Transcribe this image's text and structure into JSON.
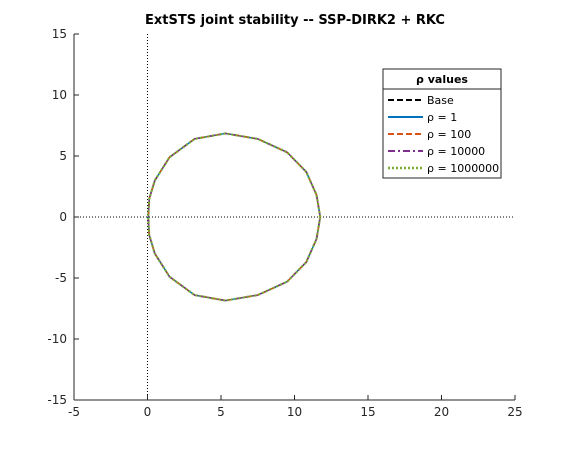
{
  "chart_data": {
    "type": "line",
    "title": "ExtSTS joint stability -- SSP-DIRK2 + RKC",
    "xlabel": "",
    "ylabel": "",
    "xlim": [
      -5,
      25
    ],
    "ylim": [
      -15,
      15
    ],
    "xticks": [
      -5,
      0,
      5,
      10,
      15,
      20,
      25
    ],
    "yticks": [
      -15,
      -10,
      -5,
      0,
      5,
      10,
      15
    ],
    "reference_lines": {
      "x": 0,
      "y": 0,
      "style": "dotted"
    },
    "grid": false,
    "legend": {
      "title": "ρ values",
      "placement": "top-right",
      "entries": [
        {
          "label": "Base",
          "color": "#000000",
          "style": "dashed"
        },
        {
          "label": "ρ = 1",
          "color": "#0072BD",
          "style": "solid"
        },
        {
          "label": "ρ = 100",
          "color": "#D95319",
          "style": "dashed"
        },
        {
          "label": "ρ = 10000",
          "color": "#7E2F8E",
          "style": "dashdot"
        },
        {
          "label": "ρ = 1000000",
          "color": "#77AC30",
          "style": "dotted"
        }
      ]
    },
    "series": [
      {
        "name": "Base",
        "color": "#000000",
        "style": "dashed",
        "x": [
          11.75,
          11.5,
          10.8,
          9.5,
          7.5,
          5.3,
          3.2,
          1.5,
          0.5,
          0.12,
          0.05,
          0.12,
          0.5,
          1.5,
          3.2,
          5.3,
          7.5,
          9.5,
          10.8,
          11.5,
          11.75
        ],
        "y": [
          0,
          1.8,
          3.7,
          5.3,
          6.4,
          6.85,
          6.4,
          4.9,
          3.0,
          1.5,
          0,
          -1.5,
          -3.0,
          -4.9,
          -6.4,
          -6.85,
          -6.4,
          -5.3,
          -3.7,
          -1.8,
          0
        ]
      },
      {
        "name": "ρ = 1",
        "color": "#0072BD",
        "style": "solid",
        "x": [
          11.75,
          11.5,
          10.8,
          9.5,
          7.5,
          5.3,
          3.2,
          1.5,
          0.5,
          0.12,
          0.05,
          0.12,
          0.5,
          1.5,
          3.2,
          5.3,
          7.5,
          9.5,
          10.8,
          11.5,
          11.75
        ],
        "y": [
          0,
          1.8,
          3.7,
          5.3,
          6.4,
          6.85,
          6.4,
          4.9,
          3.0,
          1.5,
          0,
          -1.5,
          -3.0,
          -4.9,
          -6.4,
          -6.85,
          -6.4,
          -5.3,
          -3.7,
          -1.8,
          0
        ]
      },
      {
        "name": "ρ = 100",
        "color": "#D95319",
        "style": "dashed",
        "x": [
          11.75,
          11.5,
          10.8,
          9.5,
          7.5,
          5.3,
          3.2,
          1.5,
          0.5,
          0.12,
          0.05,
          0.12,
          0.5,
          1.5,
          3.2,
          5.3,
          7.5,
          9.5,
          10.8,
          11.5,
          11.75
        ],
        "y": [
          0,
          1.8,
          3.7,
          5.3,
          6.4,
          6.85,
          6.4,
          4.9,
          3.0,
          1.5,
          0,
          -1.5,
          -3.0,
          -4.9,
          -6.4,
          -6.85,
          -6.4,
          -5.3,
          -3.7,
          -1.8,
          0
        ]
      },
      {
        "name": "ρ = 10000",
        "color": "#7E2F8E",
        "style": "dashdot",
        "x": [
          11.75,
          11.5,
          10.8,
          9.5,
          7.5,
          5.3,
          3.2,
          1.5,
          0.5,
          0.12,
          0.05,
          0.12,
          0.5,
          1.5,
          3.2,
          5.3,
          7.5,
          9.5,
          10.8,
          11.5,
          11.75
        ],
        "y": [
          0,
          1.8,
          3.7,
          5.3,
          6.4,
          6.85,
          6.4,
          4.9,
          3.0,
          1.5,
          0,
          -1.5,
          -3.0,
          -4.9,
          -6.4,
          -6.85,
          -6.4,
          -5.3,
          -3.7,
          -1.8,
          0
        ]
      },
      {
        "name": "ρ = 1000000",
        "color": "#77AC30",
        "style": "dotted",
        "x": [
          11.75,
          11.5,
          10.8,
          9.5,
          7.5,
          5.3,
          3.2,
          1.5,
          0.5,
          0.12,
          0.05,
          0.12,
          0.5,
          1.5,
          3.2,
          5.3,
          7.5,
          9.5,
          10.8,
          11.5,
          11.75
        ],
        "y": [
          0,
          1.8,
          3.7,
          5.3,
          6.4,
          6.85,
          6.4,
          4.9,
          3.0,
          1.5,
          0,
          -1.5,
          -3.0,
          -4.9,
          -6.4,
          -6.85,
          -6.4,
          -5.3,
          -3.7,
          -1.8,
          0
        ]
      }
    ]
  }
}
